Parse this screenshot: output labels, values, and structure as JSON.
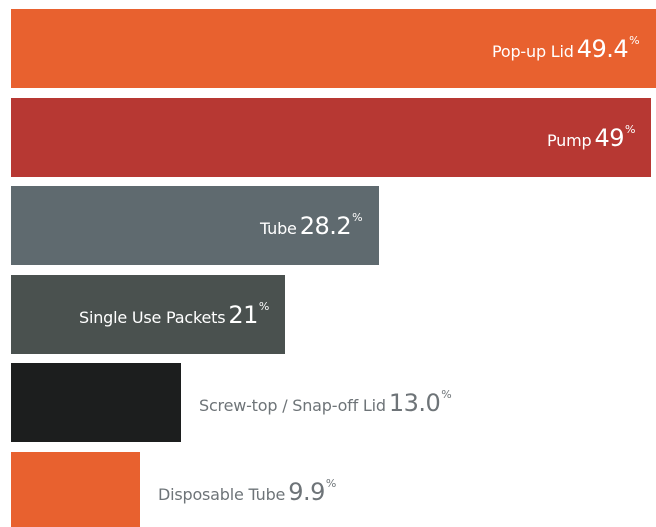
{
  "chart_data": {
    "type": "bar",
    "orientation": "horizontal",
    "title": "",
    "xlabel": "",
    "ylabel": "",
    "xlim": [
      0,
      49.4
    ],
    "grid": false,
    "legend": "none",
    "unit_symbol": "%",
    "categories": [
      "Pop-up Lid",
      "Pump",
      "Tube",
      "Single Use Packets",
      "Screw-top / Snap-off Lid",
      "Disposable Tube"
    ],
    "values": [
      49.4,
      49,
      28.2,
      21,
      13.0,
      9.9
    ],
    "value_labels": [
      "49.4",
      "49",
      "28.2",
      "21",
      "13.0",
      "9.9"
    ],
    "colors": [
      "#e8612f",
      "#b73833",
      "#5f6a6f",
      "#4a514f",
      "#1c1e1e",
      "#e8612f"
    ],
    "label_positions": [
      "inside",
      "inside",
      "inside",
      "inside",
      "outside",
      "outside"
    ]
  }
}
